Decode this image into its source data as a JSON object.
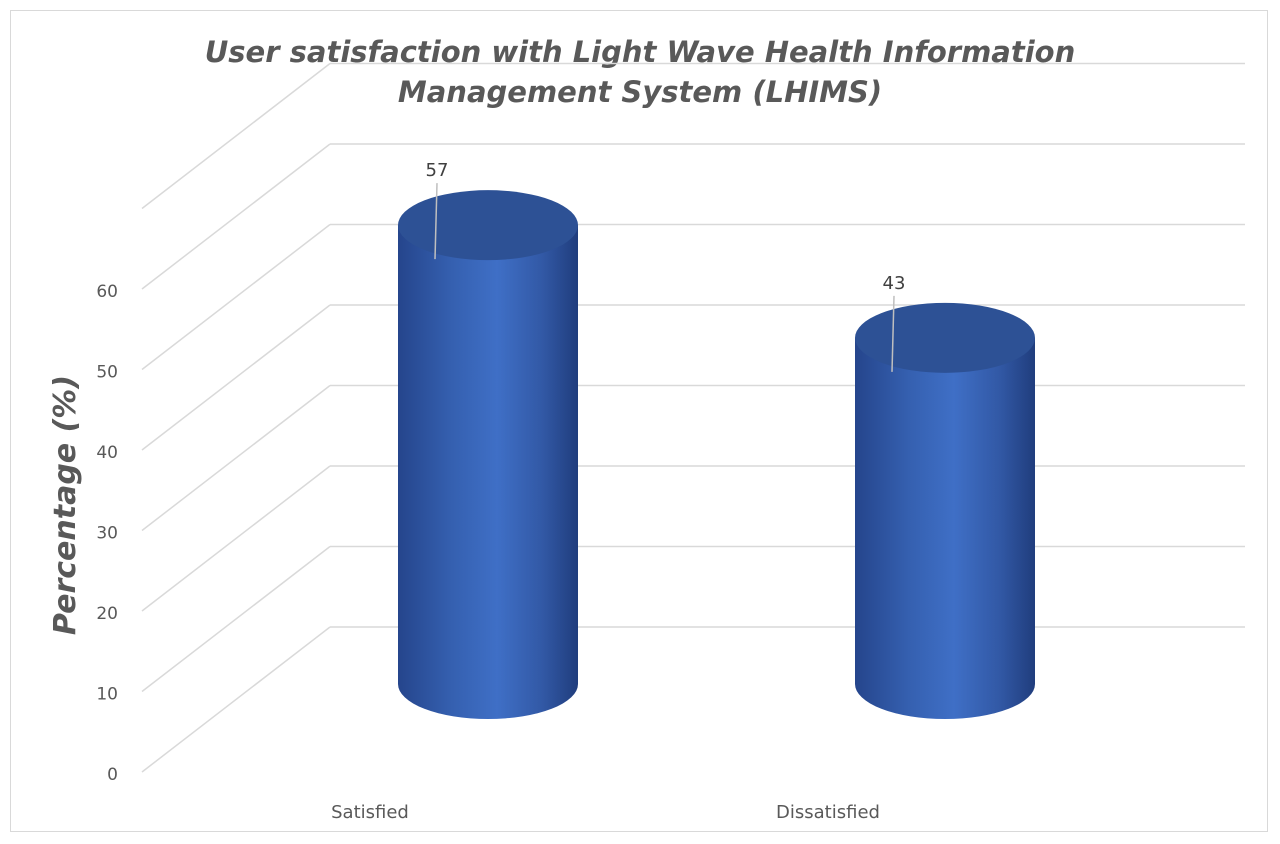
{
  "chart_data": {
    "type": "bar",
    "style": "3d-cylinder",
    "title_line1": "User satisfaction with Light Wave Health Information",
    "title_line2": "Management System (LHIMS)",
    "xlabel": "",
    "ylabel": "Percentage (%)",
    "categories": [
      "Satisfied",
      "Dissatisfied"
    ],
    "values": [
      57,
      43
    ],
    "value_labels": [
      "57",
      "43"
    ],
    "ylim": [
      0,
      60
    ],
    "yticks": [
      "0",
      "10",
      "20",
      "30",
      "40",
      "50",
      "60"
    ],
    "grid": true,
    "legend": "none",
    "bar_color": "#3b66b8"
  }
}
